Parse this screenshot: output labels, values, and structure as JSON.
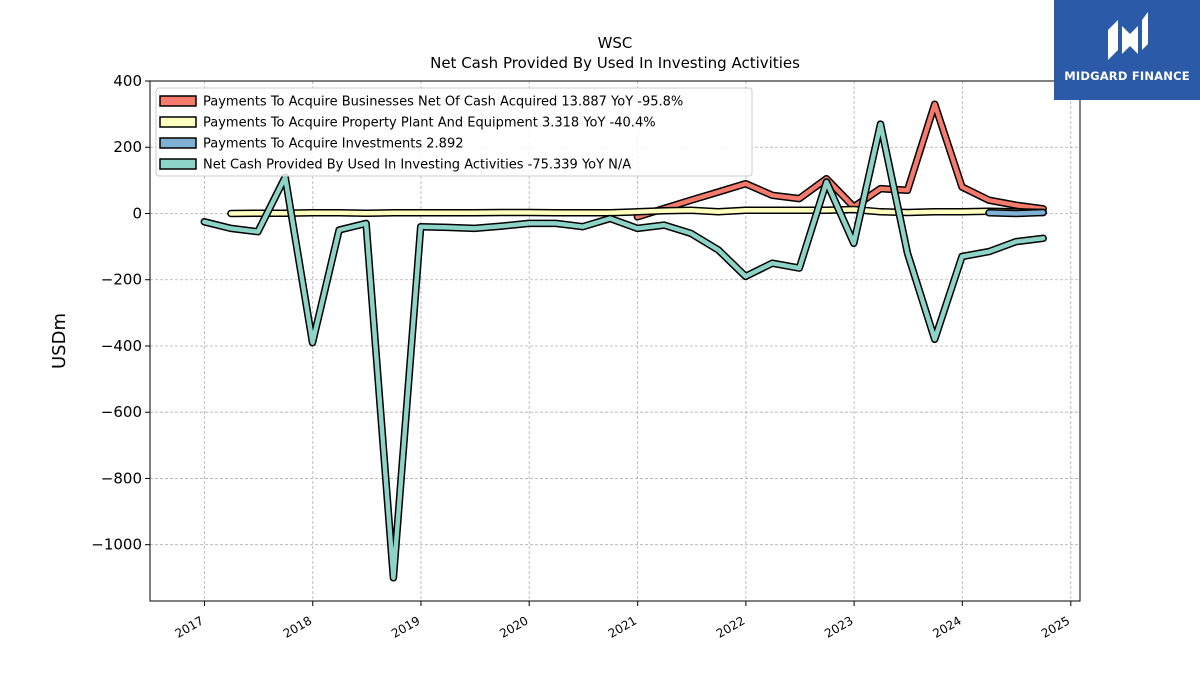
{
  "brand": {
    "name": "MIDGARD FINANCE",
    "bg_color": "#2a5aa8",
    "icon": "midgard-logo-icon"
  },
  "chart_data": {
    "type": "line",
    "title": "WSC",
    "subtitle": "Net Cash Provided By Used In Investing Activities",
    "xlabel": "",
    "ylabel": "USDm",
    "xlim": [
      "2016-07-01",
      "2025-02-01"
    ],
    "ylim": [
      -1170,
      400
    ],
    "x_ticks": [
      "2017",
      "2018",
      "2019",
      "2020",
      "2021",
      "2022",
      "2023",
      "2024",
      "2025"
    ],
    "y_ticks": [
      400,
      200,
      0,
      -200,
      -400,
      -600,
      -800,
      -1000
    ],
    "grid": true,
    "legend_position": "top-left",
    "series": [
      {
        "name": "Payments To Acquire Businesses Net Of Cash Acquired",
        "legend": "Payments To Acquire Businesses Net Of Cash Acquired  13.887 YoY -95.8%",
        "color": "#f47a6c",
        "x": [
          "2020-12-31",
          "2021-03-31",
          "2021-06-30",
          "2021-09-30",
          "2021-12-31",
          "2022-03-31",
          "2022-06-30",
          "2022-09-30",
          "2022-12-31",
          "2023-03-31",
          "2023-06-30",
          "2023-09-30",
          "2023-12-31",
          "2024-03-31",
          "2024-06-30",
          "2024-09-30"
        ],
        "y": [
          -10,
          15,
          40,
          65,
          90,
          55,
          45,
          105,
          20,
          75,
          70,
          330,
          80,
          40,
          25,
          14
        ]
      },
      {
        "name": "Payments To Acquire Property Plant And Equipment",
        "legend": "Payments To Acquire Property Plant And Equipment  3.318 YoY -40.4%",
        "color": "#ffffbf",
        "x": [
          "2017-03-31",
          "2017-06-30",
          "2017-09-30",
          "2017-12-31",
          "2018-03-31",
          "2018-06-30",
          "2018-09-30",
          "2018-12-31",
          "2019-03-31",
          "2019-06-30",
          "2019-09-30",
          "2019-12-31",
          "2020-03-31",
          "2020-06-30",
          "2020-09-30",
          "2020-12-31",
          "2021-03-31",
          "2021-06-30",
          "2021-09-30",
          "2021-12-31",
          "2022-03-31",
          "2022-06-30",
          "2022-09-30",
          "2022-12-31",
          "2023-03-31",
          "2023-06-30",
          "2023-09-30",
          "2023-12-31",
          "2024-03-31",
          "2024-06-30",
          "2024-09-30"
        ],
        "y": [
          0,
          1,
          1,
          2,
          2,
          1,
          2,
          2,
          2,
          2,
          3,
          3,
          2,
          2,
          2,
          5,
          8,
          10,
          5,
          10,
          10,
          10,
          10,
          12,
          5,
          3,
          5,
          5,
          7,
          5,
          3
        ]
      },
      {
        "name": "Payments To Acquire Investments",
        "legend": "Payments To Acquire Investments  2.892",
        "color": "#80b1d3",
        "x": [
          "2024-03-31",
          "2024-06-30",
          "2024-09-30"
        ],
        "y": [
          2,
          0,
          3
        ]
      },
      {
        "name": "Net Cash Provided By Used In Investing Activities",
        "legend": "Net Cash Provided By Used In Investing Activities  -75.339 YoY N/A",
        "color": "#8dd3c7",
        "x": [
          "2016-12-31",
          "2017-03-31",
          "2017-06-30",
          "2017-09-30",
          "2017-12-31",
          "2018-03-31",
          "2018-06-30",
          "2018-09-30",
          "2018-12-31",
          "2019-03-31",
          "2019-06-30",
          "2019-09-30",
          "2019-12-31",
          "2020-03-31",
          "2020-06-30",
          "2020-09-30",
          "2020-12-31",
          "2021-03-31",
          "2021-06-30",
          "2021-09-30",
          "2021-12-31",
          "2022-03-31",
          "2022-06-30",
          "2022-09-30",
          "2022-12-31",
          "2023-03-31",
          "2023-06-30",
          "2023-09-30",
          "2023-12-31",
          "2024-03-31",
          "2024-06-30",
          "2024-09-30"
        ],
        "y": [
          -25,
          -45,
          -55,
          110,
          -390,
          -50,
          -30,
          -1100,
          -40,
          -42,
          -45,
          -38,
          -30,
          -30,
          -40,
          -15,
          -45,
          -35,
          -60,
          -110,
          -190,
          -150,
          -165,
          95,
          -90,
          270,
          -120,
          -380,
          -130,
          -115,
          -85,
          -75
        ]
      }
    ]
  }
}
